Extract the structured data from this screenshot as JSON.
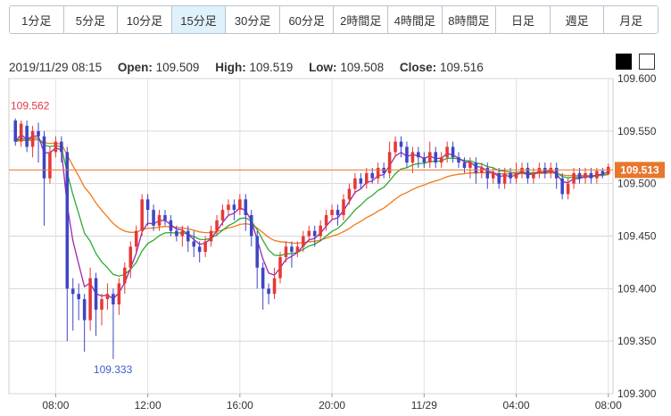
{
  "tabs": [
    {
      "label": "1分足",
      "active": false
    },
    {
      "label": "5分足",
      "active": false
    },
    {
      "label": "10分足",
      "active": false
    },
    {
      "label": "15分足",
      "active": true
    },
    {
      "label": "30分足",
      "active": false
    },
    {
      "label": "60分足",
      "active": false
    },
    {
      "label": "2時間足",
      "active": false
    },
    {
      "label": "4時間足",
      "active": false
    },
    {
      "label": "8時間足",
      "active": false
    },
    {
      "label": "日足",
      "active": false
    },
    {
      "label": "週足",
      "active": false
    },
    {
      "label": "月足",
      "active": false
    }
  ],
  "info": {
    "datetime": "2019/11/29 08:15",
    "open_label": "Open:",
    "open": "109.509",
    "high_label": "High:",
    "high": "109.519",
    "low_label": "Low:",
    "low": "109.508",
    "close_label": "Close:",
    "close": "109.516"
  },
  "chart_data": {
    "type": "candlestick",
    "ylim": [
      109.3,
      109.6
    ],
    "y_ticks": [
      "109.600",
      "109.550",
      "109.500",
      "109.450",
      "109.400",
      "109.350",
      "109.300"
    ],
    "x_ticks": [
      "08:00",
      "12:00",
      "16:00",
      "20:00",
      "11/29",
      "04:00",
      "08:00"
    ],
    "x_tick_index": [
      7,
      23,
      39,
      55,
      71,
      87,
      103
    ],
    "current_price": "109.513",
    "annotations": [
      {
        "text": "109.562",
        "index": 0,
        "value": 109.562
      },
      {
        "text": "109.333",
        "index": 17,
        "value": 109.333
      }
    ],
    "candles": [
      [
        109.56,
        109.54,
        109.562,
        109.536
      ],
      [
        109.54,
        109.557,
        109.56,
        109.535
      ],
      [
        109.555,
        109.535,
        109.56,
        109.53
      ],
      [
        109.535,
        109.55,
        109.555,
        109.525
      ],
      [
        109.55,
        109.545,
        109.558,
        109.52
      ],
      [
        109.545,
        109.505,
        109.55,
        109.46
      ],
      [
        109.505,
        109.53,
        109.535,
        109.5
      ],
      [
        109.53,
        109.54,
        109.545,
        109.525
      ],
      [
        109.54,
        109.53,
        109.545,
        109.52
      ],
      [
        109.53,
        109.4,
        109.535,
        109.35
      ],
      [
        109.4,
        109.395,
        109.41,
        109.36
      ],
      [
        109.395,
        109.39,
        109.405,
        109.37
      ],
      [
        109.39,
        109.37,
        109.395,
        109.34
      ],
      [
        109.37,
        109.41,
        109.42,
        109.36
      ],
      [
        109.41,
        109.38,
        109.415,
        109.355
      ],
      [
        109.38,
        109.39,
        109.395,
        109.365
      ],
      [
        109.39,
        109.395,
        109.405,
        109.38
      ],
      [
        109.395,
        109.385,
        109.4,
        109.333
      ],
      [
        109.385,
        109.405,
        109.41,
        109.375
      ],
      [
        109.405,
        109.42,
        109.425,
        109.395
      ],
      [
        109.42,
        109.44,
        109.445,
        109.41
      ],
      [
        109.44,
        109.455,
        109.46,
        109.435
      ],
      [
        109.455,
        109.485,
        109.49,
        109.45
      ],
      [
        109.485,
        109.475,
        109.49,
        109.46
      ],
      [
        109.475,
        109.46,
        109.48,
        109.455
      ],
      [
        109.46,
        109.47,
        109.475,
        109.455
      ],
      [
        109.47,
        109.465,
        109.475,
        109.46
      ],
      [
        109.465,
        109.455,
        109.47,
        109.45
      ],
      [
        109.455,
        109.45,
        109.46,
        109.445
      ],
      [
        109.45,
        109.455,
        109.46,
        109.44
      ],
      [
        109.455,
        109.445,
        109.46,
        109.435
      ],
      [
        109.445,
        109.44,
        109.455,
        109.43
      ],
      [
        109.44,
        109.435,
        109.445,
        109.425
      ],
      [
        109.435,
        109.445,
        109.45,
        109.43
      ],
      [
        109.445,
        109.455,
        109.46,
        109.44
      ],
      [
        109.455,
        109.465,
        109.47,
        109.45
      ],
      [
        109.465,
        109.475,
        109.48,
        109.46
      ],
      [
        109.475,
        109.48,
        109.485,
        109.47
      ],
      [
        109.48,
        109.475,
        109.485,
        109.465
      ],
      [
        109.475,
        109.485,
        109.49,
        109.47
      ],
      [
        109.485,
        109.47,
        109.49,
        109.455
      ],
      [
        109.47,
        109.45,
        109.475,
        109.44
      ],
      [
        109.45,
        109.42,
        109.455,
        109.4
      ],
      [
        109.42,
        109.4,
        109.425,
        109.38
      ],
      [
        109.4,
        109.395,
        109.405,
        109.385
      ],
      [
        109.395,
        109.41,
        109.42,
        109.39
      ],
      [
        109.41,
        109.43,
        109.435,
        109.405
      ],
      [
        109.43,
        109.44,
        109.445,
        109.425
      ],
      [
        109.44,
        109.435,
        109.445,
        109.42
      ],
      [
        109.435,
        109.44,
        109.445,
        109.43
      ],
      [
        109.44,
        109.45,
        109.455,
        109.435
      ],
      [
        109.45,
        109.455,
        109.46,
        109.445
      ],
      [
        109.455,
        109.45,
        109.46,
        109.44
      ],
      [
        109.45,
        109.46,
        109.465,
        109.445
      ],
      [
        109.46,
        109.47,
        109.475,
        109.455
      ],
      [
        109.47,
        109.475,
        109.48,
        109.465
      ],
      [
        109.475,
        109.47,
        109.48,
        109.46
      ],
      [
        109.47,
        109.485,
        109.49,
        109.465
      ],
      [
        109.485,
        109.495,
        109.5,
        109.48
      ],
      [
        109.495,
        109.505,
        109.51,
        109.49
      ],
      [
        109.505,
        109.5,
        109.51,
        109.495
      ],
      [
        109.5,
        109.51,
        109.515,
        109.495
      ],
      [
        109.51,
        109.505,
        109.515,
        109.5
      ],
      [
        109.505,
        109.515,
        109.52,
        109.5
      ],
      [
        109.515,
        109.51,
        109.52,
        109.505
      ],
      [
        109.51,
        109.53,
        109.54,
        109.505
      ],
      [
        109.53,
        109.54,
        109.545,
        109.525
      ],
      [
        109.54,
        109.535,
        109.545,
        109.525
      ],
      [
        109.535,
        109.52,
        109.54,
        109.515
      ],
      [
        109.52,
        109.53,
        109.535,
        109.51
      ],
      [
        109.53,
        109.525,
        109.535,
        109.515
      ],
      [
        109.525,
        109.52,
        109.53,
        109.515
      ],
      [
        109.52,
        109.53,
        109.54,
        109.515
      ],
      [
        109.53,
        109.52,
        109.535,
        109.515
      ],
      [
        109.52,
        109.525,
        109.53,
        109.515
      ],
      [
        109.525,
        109.535,
        109.54,
        109.52
      ],
      [
        109.535,
        109.525,
        109.54,
        109.52
      ],
      [
        109.525,
        109.52,
        109.53,
        109.515
      ],
      [
        109.52,
        109.515,
        109.525,
        109.51
      ],
      [
        109.515,
        109.52,
        109.525,
        109.505
      ],
      [
        109.52,
        109.51,
        109.525,
        109.5
      ],
      [
        109.51,
        109.515,
        109.52,
        109.505
      ],
      [
        109.515,
        109.505,
        109.52,
        109.495
      ],
      [
        109.505,
        109.51,
        109.515,
        109.5
      ],
      [
        109.51,
        109.5,
        109.515,
        109.495
      ],
      [
        109.5,
        109.51,
        109.515,
        109.495
      ],
      [
        109.51,
        109.505,
        109.515,
        109.5
      ],
      [
        109.505,
        109.51,
        109.52,
        109.5
      ],
      [
        109.51,
        109.515,
        109.52,
        109.505
      ],
      [
        109.515,
        109.505,
        109.52,
        109.5
      ],
      [
        109.505,
        109.51,
        109.515,
        109.5
      ],
      [
        109.51,
        109.515,
        109.52,
        109.505
      ],
      [
        109.515,
        109.51,
        109.52,
        109.505
      ],
      [
        109.51,
        109.515,
        109.52,
        109.505
      ],
      [
        109.515,
        109.505,
        109.52,
        109.495
      ],
      [
        109.505,
        109.49,
        109.51,
        109.485
      ],
      [
        109.49,
        109.5,
        109.505,
        109.485
      ],
      [
        109.5,
        109.51,
        109.515,
        109.495
      ],
      [
        109.51,
        109.505,
        109.515,
        109.5
      ],
      [
        109.505,
        109.51,
        109.515,
        109.5
      ],
      [
        109.51,
        109.505,
        109.515,
        109.5
      ],
      [
        109.505,
        109.512,
        109.515,
        109.5
      ],
      [
        109.512,
        109.509,
        109.515,
        109.505
      ],
      [
        109.509,
        109.516,
        109.519,
        109.508
      ]
    ],
    "colors": {
      "up": "#e53935",
      "down": "#3f45c6",
      "ma_short": "#9c27b0",
      "ma_mid": "#2eaa2e",
      "ma_long": "#f07a1a",
      "price_line": "#e8772e"
    }
  }
}
